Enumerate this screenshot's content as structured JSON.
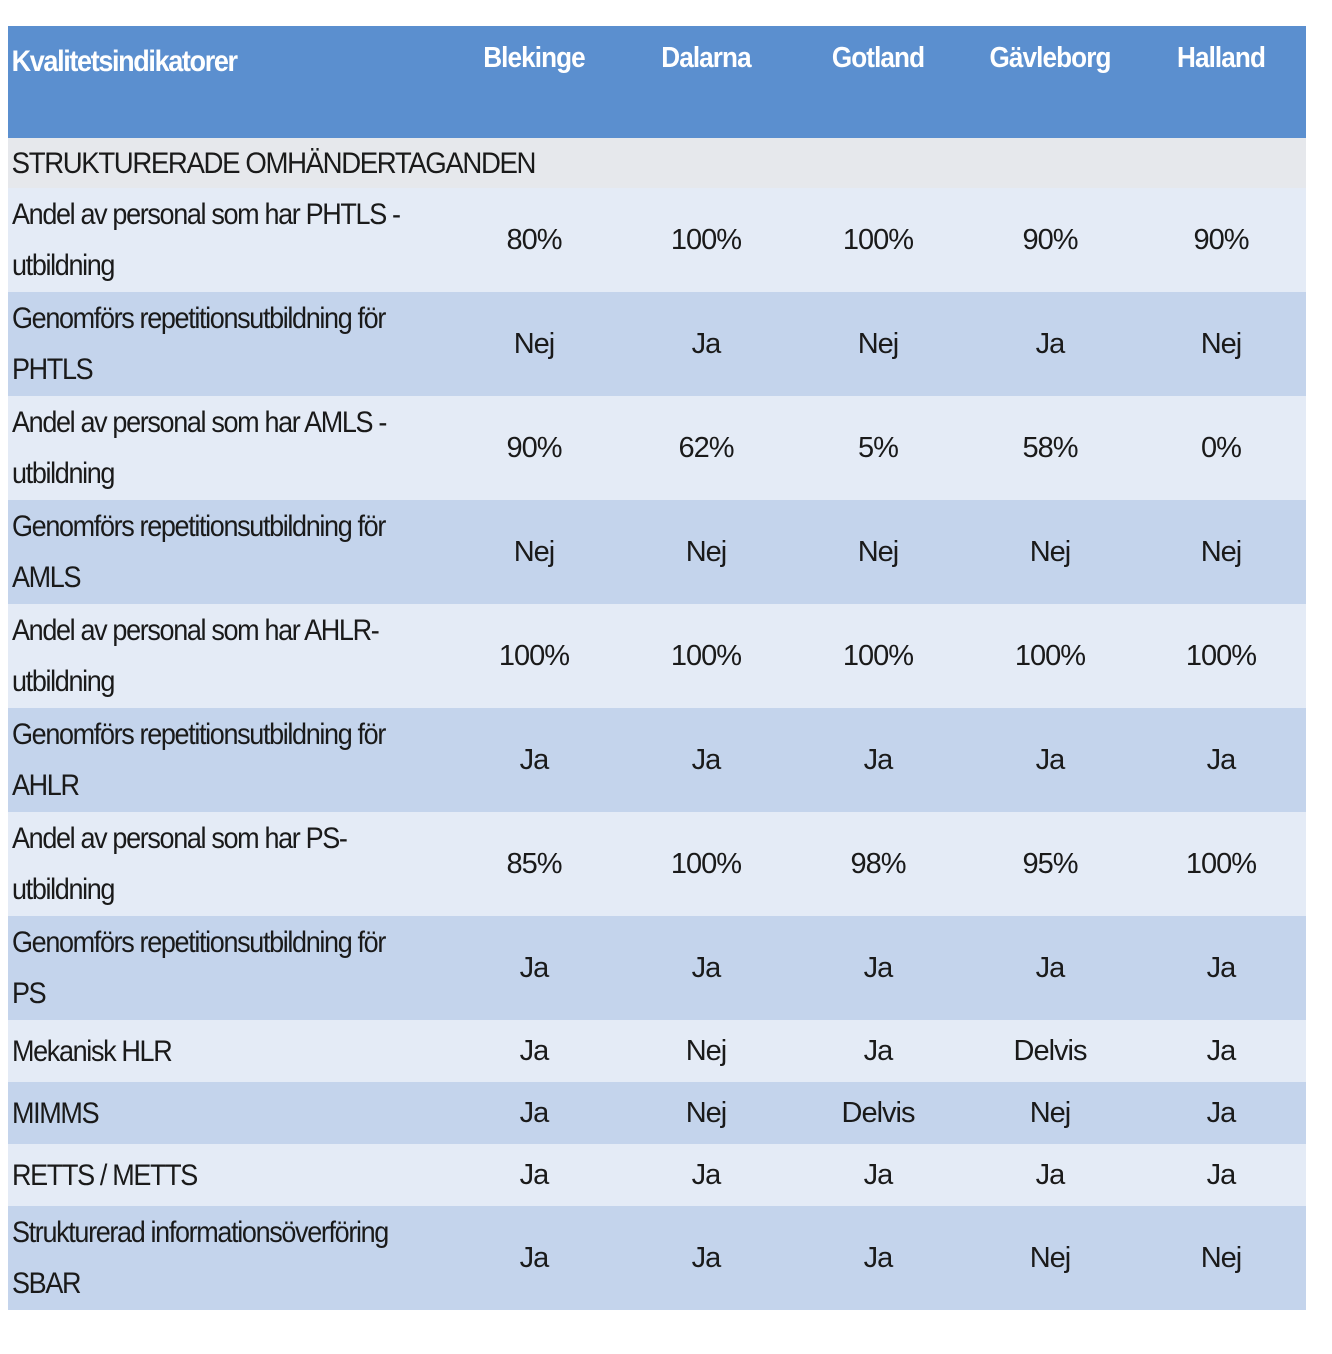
{
  "table": {
    "header": {
      "indicator_label": "Kvalitetsindikatorer",
      "regions": [
        "Blekinge",
        "Dalarna",
        "Gotland",
        "Gävleborg",
        "Halland"
      ]
    },
    "section_label": "STRUKTURERADE OMHÄNDERTAGANDEN",
    "rows": [
      {
        "label": "Andel av personal som har PHTLS - utbildning",
        "values": [
          "80%",
          "100%",
          "100%",
          "90%",
          "90%"
        ]
      },
      {
        "label": "Genomförs repetitionsutbildning för PHTLS",
        "values": [
          "Nej",
          "Ja",
          "Nej",
          "Ja",
          "Nej"
        ]
      },
      {
        "label": "Andel av personal som har AMLS - utbildning",
        "values": [
          "90%",
          "62%",
          "5%",
          "58%",
          "0%"
        ]
      },
      {
        "label": "Genomförs repetitionsutbildning för AMLS",
        "values": [
          "Nej",
          "Nej",
          "Nej",
          "Nej",
          "Nej"
        ]
      },
      {
        "label": "Andel av personal som har AHLR- utbildning",
        "values": [
          "100%",
          "100%",
          "100%",
          "100%",
          "100%"
        ]
      },
      {
        "label": "Genomförs repetitionsutbildning för AHLR",
        "values": [
          "Ja",
          "Ja",
          "Ja",
          "Ja",
          "Ja"
        ]
      },
      {
        "label": "Andel av personal som har PS- utbildning",
        "values": [
          "85%",
          "100%",
          "98%",
          "95%",
          "100%"
        ]
      },
      {
        "label": "Genomförs repetitionsutbildning för PS",
        "values": [
          "Ja",
          "Ja",
          "Ja",
          "Ja",
          "Ja"
        ]
      },
      {
        "label": "Mekanisk HLR",
        "values": [
          "Ja",
          "Nej",
          "Ja",
          "Delvis",
          "Ja"
        ]
      },
      {
        "label": "MIMMS",
        "values": [
          "Ja",
          "Nej",
          "Delvis",
          "Nej",
          "Ja"
        ]
      },
      {
        "label": "RETTS / METTS",
        "values": [
          "Ja",
          "Ja",
          "Ja",
          "Ja",
          "Ja"
        ]
      },
      {
        "label": "Strukturerad informationsöverföring SBAR",
        "values": [
          "Ja",
          "Ja",
          "Ja",
          "Nej",
          "Nej"
        ]
      }
    ]
  },
  "colors": {
    "header_bg": "#5b8fcf",
    "section_bg": "#e6e8ec",
    "row_light": "#e4ebf6",
    "row_dark": "#c4d4ec"
  }
}
